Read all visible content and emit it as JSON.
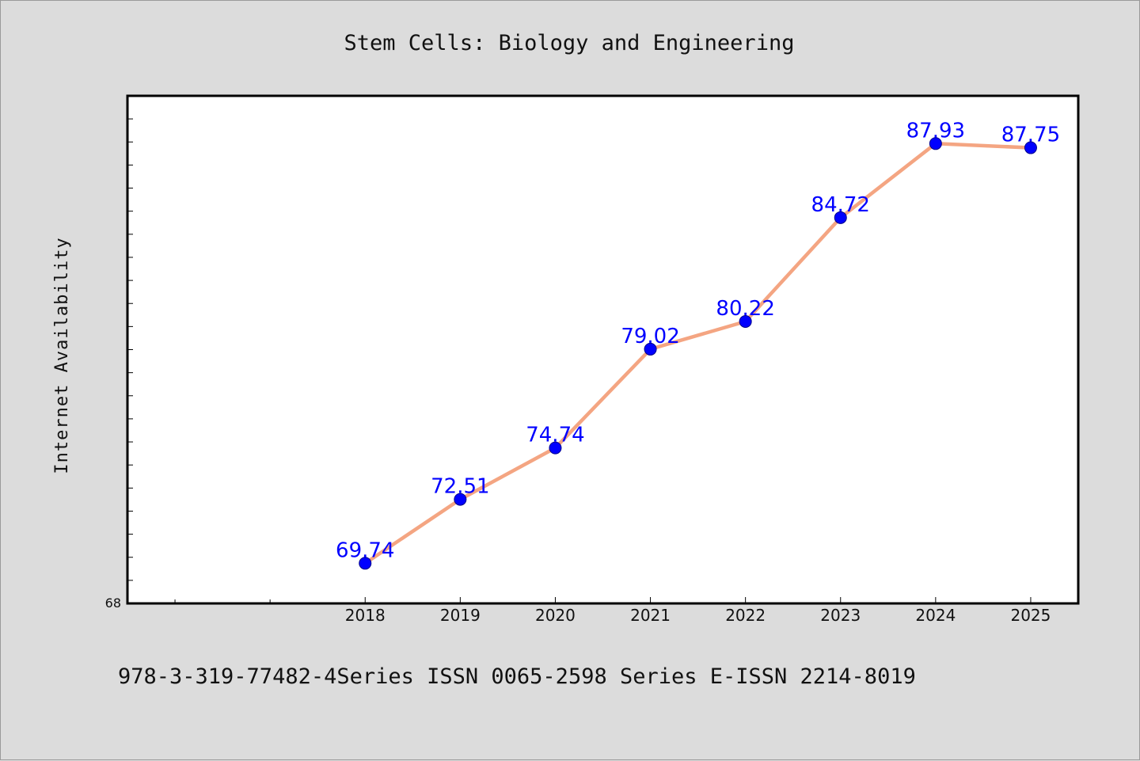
{
  "footer": "978-3-319-77482-4Series ISSN 0065-2598 Series E-ISSN 2214-8019",
  "colors": {
    "background": "#dcdcdc",
    "plot_background": "#ffffff",
    "line": "#f4a582",
    "marker": "#0000ff",
    "data_label": "#0000ff"
  },
  "chart_data": {
    "type": "line",
    "title": "Stem Cells: Biology and Engineering",
    "xlabel": "",
    "ylabel": "Internet Availability",
    "x": [
      "2018",
      "2019",
      "2020",
      "2021",
      "2022",
      "2023",
      "2024",
      "2025"
    ],
    "series": [
      {
        "values": [
          69.74,
          72.51,
          74.74,
          79.02,
          80.22,
          84.72,
          87.93,
          87.75
        ]
      }
    ],
    "xlim": [
      2015.5,
      2025.5
    ],
    "ylim": [
      68,
      90
    ],
    "y_tick_labels": [
      "68"
    ],
    "y_minor_tick_step": 1,
    "grid": false,
    "legend": "none",
    "markers": true,
    "data_labels": true
  }
}
